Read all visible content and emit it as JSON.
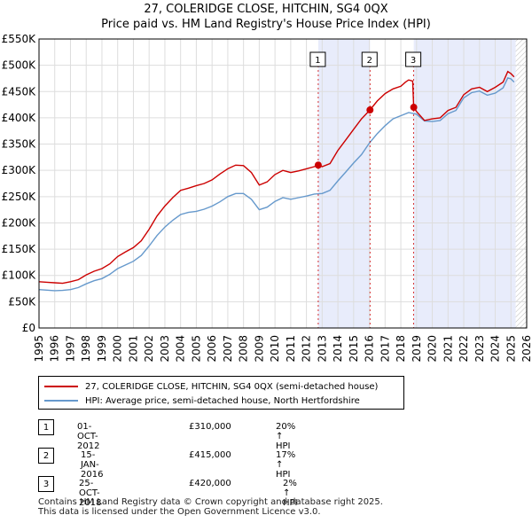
{
  "title": "27, COLERIDGE CLOSE, HITCHIN, SG4 0QX",
  "subtitle": "Price paid vs. HM Land Registry's House Price Index (HPI)",
  "colors": {
    "red": "#cc0000",
    "blue": "#6699cc",
    "shade": "#e8ecfb",
    "grid": "#dddddd",
    "hatch": "#bbbbbb"
  },
  "chart_data": {
    "type": "line",
    "xlim": [
      1995,
      2026
    ],
    "ylim": [
      0,
      550000
    ],
    "yticks": [
      {
        "value": 0,
        "label": "£0"
      },
      {
        "value": 50000,
        "label": "£50K"
      },
      {
        "value": 100000,
        "label": "£100K"
      },
      {
        "value": 150000,
        "label": "£150K"
      },
      {
        "value": 200000,
        "label": "£200K"
      },
      {
        "value": 250000,
        "label": "£250K"
      },
      {
        "value": 300000,
        "label": "£300K"
      },
      {
        "value": 350000,
        "label": "£350K"
      },
      {
        "value": 400000,
        "label": "£400K"
      },
      {
        "value": 450000,
        "label": "£450K"
      },
      {
        "value": 500000,
        "label": "£500K"
      },
      {
        "value": 550000,
        "label": "£550K"
      }
    ],
    "xticks": [
      "1995",
      "1996",
      "1997",
      "1998",
      "1999",
      "2000",
      "2001",
      "2002",
      "2003",
      "2004",
      "2005",
      "2006",
      "2007",
      "2008",
      "2009",
      "2010",
      "2011",
      "2012",
      "2013",
      "2014",
      "2015",
      "2016",
      "2017",
      "2018",
      "2019",
      "2020",
      "2021",
      "2022",
      "2023",
      "2024",
      "2025",
      "2026"
    ],
    "shaded_periods": [
      [
        2012.75,
        2016.04
      ],
      [
        2018.82,
        2025.3
      ]
    ],
    "future_from": 2025.3,
    "series": [
      {
        "name": "27, COLERIDGE CLOSE, HITCHIN, SG4 0QX (semi-detached house)",
        "color": "#cc0000",
        "points": [
          [
            1995,
            88000
          ],
          [
            1995.5,
            87000
          ],
          [
            1996,
            86000
          ],
          [
            1996.5,
            85000
          ],
          [
            1997,
            88000
          ],
          [
            1997.5,
            92000
          ],
          [
            1998,
            101000
          ],
          [
            1998.5,
            108000
          ],
          [
            1999,
            113000
          ],
          [
            1999.5,
            122000
          ],
          [
            2000,
            136000
          ],
          [
            2000.5,
            145000
          ],
          [
            2001,
            153000
          ],
          [
            2001.5,
            166000
          ],
          [
            2002,
            188000
          ],
          [
            2002.5,
            213000
          ],
          [
            2003,
            232000
          ],
          [
            2003.5,
            248000
          ],
          [
            2004,
            262000
          ],
          [
            2004.5,
            266000
          ],
          [
            2005,
            271000
          ],
          [
            2005.5,
            275000
          ],
          [
            2006,
            282000
          ],
          [
            2006.5,
            293000
          ],
          [
            2007,
            303000
          ],
          [
            2007.5,
            310000
          ],
          [
            2008,
            309000
          ],
          [
            2008.5,
            296000
          ],
          [
            2009,
            272000
          ],
          [
            2009.5,
            278000
          ],
          [
            2010,
            292000
          ],
          [
            2010.5,
            300000
          ],
          [
            2011,
            296000
          ],
          [
            2011.5,
            299000
          ],
          [
            2012,
            303000
          ],
          [
            2012.5,
            307000
          ],
          [
            2012.75,
            310000
          ],
          [
            2013,
            307000
          ],
          [
            2013.5,
            313000
          ],
          [
            2014,
            338000
          ],
          [
            2014.5,
            358000
          ],
          [
            2015,
            378000
          ],
          [
            2015.5,
            398000
          ],
          [
            2016.04,
            415000
          ],
          [
            2016.5,
            432000
          ],
          [
            2017,
            446000
          ],
          [
            2017.5,
            455000
          ],
          [
            2018,
            460000
          ],
          [
            2018.3,
            468000
          ],
          [
            2018.5,
            472000
          ],
          [
            2018.75,
            470000
          ],
          [
            2018.82,
            420000
          ],
          [
            2019,
            412000
          ],
          [
            2019.5,
            395000
          ],
          [
            2020,
            398000
          ],
          [
            2020.5,
            400000
          ],
          [
            2021,
            414000
          ],
          [
            2021.5,
            420000
          ],
          [
            2022,
            444000
          ],
          [
            2022.5,
            455000
          ],
          [
            2023,
            458000
          ],
          [
            2023.5,
            450000
          ],
          [
            2024,
            458000
          ],
          [
            2024.5,
            468000
          ],
          [
            2024.8,
            488000
          ],
          [
            2025,
            484000
          ],
          [
            2025.2,
            478000
          ]
        ]
      },
      {
        "name": "HPI: Average price, semi-detached house, North Hertfordshire",
        "color": "#6699cc",
        "points": [
          [
            1995,
            73000
          ],
          [
            1995.5,
            72000
          ],
          [
            1996,
            71000
          ],
          [
            1996.5,
            71500
          ],
          [
            1997,
            73000
          ],
          [
            1997.5,
            77000
          ],
          [
            1998,
            84000
          ],
          [
            1998.5,
            90000
          ],
          [
            1999,
            94000
          ],
          [
            1999.5,
            102000
          ],
          [
            2000,
            113000
          ],
          [
            2000.5,
            120000
          ],
          [
            2001,
            127000
          ],
          [
            2001.5,
            138000
          ],
          [
            2002,
            156000
          ],
          [
            2002.5,
            176000
          ],
          [
            2003,
            192000
          ],
          [
            2003.5,
            205000
          ],
          [
            2004,
            216000
          ],
          [
            2004.5,
            220000
          ],
          [
            2005,
            222000
          ],
          [
            2005.5,
            226000
          ],
          [
            2006,
            232000
          ],
          [
            2006.5,
            240000
          ],
          [
            2007,
            250000
          ],
          [
            2007.5,
            256000
          ],
          [
            2008,
            256000
          ],
          [
            2008.5,
            245000
          ],
          [
            2009,
            225000
          ],
          [
            2009.5,
            230000
          ],
          [
            2010,
            241000
          ],
          [
            2010.5,
            248000
          ],
          [
            2011,
            245000
          ],
          [
            2011.5,
            248000
          ],
          [
            2012,
            251000
          ],
          [
            2012.5,
            255000
          ],
          [
            2013,
            256000
          ],
          [
            2013.5,
            262000
          ],
          [
            2014,
            280000
          ],
          [
            2014.5,
            297000
          ],
          [
            2015,
            314000
          ],
          [
            2015.5,
            330000
          ],
          [
            2016,
            352000
          ],
          [
            2016.5,
            370000
          ],
          [
            2017,
            385000
          ],
          [
            2017.5,
            398000
          ],
          [
            2018,
            404000
          ],
          [
            2018.5,
            410000
          ],
          [
            2019,
            407000
          ],
          [
            2019.5,
            394000
          ],
          [
            2020,
            393000
          ],
          [
            2020.5,
            395000
          ],
          [
            2021,
            408000
          ],
          [
            2021.5,
            414000
          ],
          [
            2022,
            438000
          ],
          [
            2022.5,
            448000
          ],
          [
            2023,
            451000
          ],
          [
            2023.5,
            443000
          ],
          [
            2024,
            447000
          ],
          [
            2024.5,
            457000
          ],
          [
            2024.8,
            476000
          ],
          [
            2025,
            474000
          ],
          [
            2025.2,
            468000
          ]
        ]
      }
    ],
    "sales": [
      {
        "label": "1",
        "x": 2012.75,
        "y": 310000
      },
      {
        "label": "2",
        "x": 2016.04,
        "y": 415000
      },
      {
        "label": "3",
        "x": 2018.82,
        "y": 420000
      }
    ]
  },
  "legend": {
    "property": "27, COLERIDGE CLOSE, HITCHIN, SG4 0QX (semi-detached house)",
    "hpi": "HPI: Average price, semi-detached house, North Hertfordshire"
  },
  "transactions": [
    {
      "num": "1",
      "date": "01-OCT-2012",
      "price": "£310,000",
      "hpi": "20% ↑ HPI"
    },
    {
      "num": "2",
      "date": "15-JAN-2016",
      "price": "£415,000",
      "hpi": "17% ↑ HPI"
    },
    {
      "num": "3",
      "date": "25-OCT-2018",
      "price": "£420,000",
      "hpi": "2% ↑ HPI"
    }
  ],
  "footer": {
    "line1": "Contains HM Land Registry data © Crown copyright and database right 2025.",
    "line2": "This data is licensed under the Open Government Licence v3.0."
  }
}
